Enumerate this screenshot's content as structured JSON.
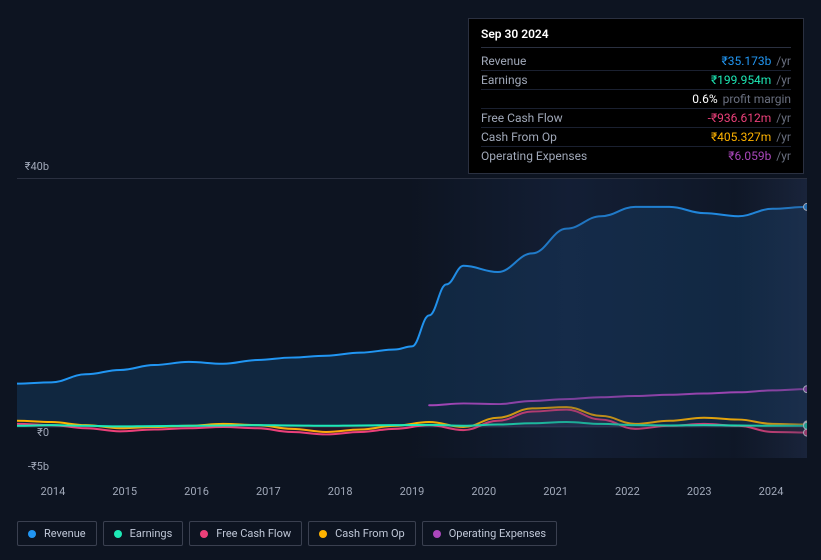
{
  "tooltip": {
    "date": "Sep 30 2024",
    "rows": [
      {
        "label": "Revenue",
        "value": "₹35.173b",
        "suffix": "/yr",
        "color": "#2196f3"
      },
      {
        "label": "Earnings",
        "value": "₹199.954m",
        "suffix": "/yr",
        "color": "#1de9b6"
      },
      {
        "label": "",
        "value": "0.6%",
        "suffix": "profit margin",
        "color": "#ffffff"
      },
      {
        "label": "Free Cash Flow",
        "value": "-₹936.612m",
        "suffix": "/yr",
        "color": "#ec407a"
      },
      {
        "label": "Cash From Op",
        "value": "₹405.327m",
        "suffix": "/yr",
        "color": "#ffb300"
      },
      {
        "label": "Operating Expenses",
        "value": "₹6.059b",
        "suffix": "/yr",
        "color": "#ab47bc"
      }
    ]
  },
  "chart": {
    "type": "area-line",
    "background_color": "#0d1421",
    "grid_color": "#2a3040",
    "xlim": [
      2013.5,
      2025
    ],
    "ylim": [
      -5,
      40
    ],
    "y_ticks": [
      {
        "v": 40,
        "label": "₹40b"
      },
      {
        "v": 0,
        "label": "₹0"
      },
      {
        "v": -5,
        "label": "-₹5b"
      }
    ],
    "x_ticks": [
      2014,
      2015,
      2016,
      2017,
      2018,
      2019,
      2020,
      2021,
      2022,
      2023,
      2024
    ],
    "line_width": 2,
    "highlight_x": 2019.5,
    "series": [
      {
        "name": "Revenue",
        "color": "#2196f3",
        "fill_opacity": 0.15,
        "data": [
          [
            2013.5,
            7
          ],
          [
            2014,
            7.2
          ],
          [
            2014.5,
            8.5
          ],
          [
            2015,
            9.2
          ],
          [
            2015.5,
            10
          ],
          [
            2016,
            10.5
          ],
          [
            2016.5,
            10.2
          ],
          [
            2017,
            10.8
          ],
          [
            2017.5,
            11.2
          ],
          [
            2018,
            11.5
          ],
          [
            2018.5,
            12
          ],
          [
            2019,
            12.5
          ],
          [
            2019.25,
            13
          ],
          [
            2019.5,
            18
          ],
          [
            2019.75,
            23
          ],
          [
            2020,
            26
          ],
          [
            2020.5,
            25
          ],
          [
            2021,
            28
          ],
          [
            2021.5,
            32
          ],
          [
            2022,
            34
          ],
          [
            2022.5,
            35.5
          ],
          [
            2023,
            35.5
          ],
          [
            2023.5,
            34.5
          ],
          [
            2024,
            34
          ],
          [
            2024.5,
            35.2
          ],
          [
            2025,
            35.5
          ]
        ]
      },
      {
        "name": "Operating Expenses",
        "color": "#ab47bc",
        "fill_opacity": 0,
        "data": [
          [
            2019.5,
            3.5
          ],
          [
            2020,
            3.8
          ],
          [
            2020.5,
            3.7
          ],
          [
            2021,
            4.2
          ],
          [
            2021.5,
            4.5
          ],
          [
            2022,
            4.8
          ],
          [
            2022.5,
            5
          ],
          [
            2023,
            5.2
          ],
          [
            2023.5,
            5.4
          ],
          [
            2024,
            5.6
          ],
          [
            2024.5,
            5.9
          ],
          [
            2025,
            6.1
          ]
        ]
      },
      {
        "name": "Cash From Op",
        "color": "#ffb300",
        "fill_opacity": 0,
        "data": [
          [
            2013.5,
            1
          ],
          [
            2014,
            0.8
          ],
          [
            2014.5,
            0.3
          ],
          [
            2015,
            -0.2
          ],
          [
            2015.5,
            0
          ],
          [
            2016,
            0.2
          ],
          [
            2016.5,
            0.5
          ],
          [
            2017,
            0.3
          ],
          [
            2017.5,
            -0.3
          ],
          [
            2018,
            -0.8
          ],
          [
            2018.5,
            -0.4
          ],
          [
            2019,
            0.2
          ],
          [
            2019.5,
            0.8
          ],
          [
            2020,
            0
          ],
          [
            2020.5,
            1.5
          ],
          [
            2021,
            3
          ],
          [
            2021.5,
            3.2
          ],
          [
            2022,
            1.8
          ],
          [
            2022.5,
            0.5
          ],
          [
            2023,
            1
          ],
          [
            2023.5,
            1.5
          ],
          [
            2024,
            1.2
          ],
          [
            2024.5,
            0.5
          ],
          [
            2025,
            0.4
          ]
        ]
      },
      {
        "name": "Free Cash Flow",
        "color": "#ec407a",
        "fill_opacity": 0.1,
        "data": [
          [
            2013.5,
            0.5
          ],
          [
            2014,
            0.3
          ],
          [
            2014.5,
            -0.2
          ],
          [
            2015,
            -0.7
          ],
          [
            2015.5,
            -0.4
          ],
          [
            2016,
            -0.2
          ],
          [
            2016.5,
            0
          ],
          [
            2017,
            -0.2
          ],
          [
            2017.5,
            -0.8
          ],
          [
            2018,
            -1.2
          ],
          [
            2018.5,
            -0.8
          ],
          [
            2019,
            -0.3
          ],
          [
            2019.5,
            0.3
          ],
          [
            2020,
            -0.5
          ],
          [
            2020.5,
            1
          ],
          [
            2021,
            2.5
          ],
          [
            2021.5,
            2.8
          ],
          [
            2022,
            1.2
          ],
          [
            2022.5,
            -0.3
          ],
          [
            2023,
            0.2
          ],
          [
            2023.5,
            0.5
          ],
          [
            2024,
            0.2
          ],
          [
            2024.5,
            -0.8
          ],
          [
            2025,
            -0.9
          ]
        ]
      },
      {
        "name": "Earnings",
        "color": "#1de9b6",
        "fill_opacity": 0,
        "data": [
          [
            2013.5,
            0.2
          ],
          [
            2014,
            0.3
          ],
          [
            2014.5,
            0.2
          ],
          [
            2015,
            0.1
          ],
          [
            2015.5,
            0.15
          ],
          [
            2016,
            0.2
          ],
          [
            2016.5,
            0.25
          ],
          [
            2017,
            0.3
          ],
          [
            2017.5,
            0.25
          ],
          [
            2018,
            0.2
          ],
          [
            2018.5,
            0.25
          ],
          [
            2019,
            0.3
          ],
          [
            2019.5,
            0.35
          ],
          [
            2020,
            0.2
          ],
          [
            2020.5,
            0.4
          ],
          [
            2021,
            0.6
          ],
          [
            2021.5,
            0.8
          ],
          [
            2022,
            0.5
          ],
          [
            2022.5,
            0.3
          ],
          [
            2023,
            0.25
          ],
          [
            2023.5,
            0.3
          ],
          [
            2024,
            0.25
          ],
          [
            2024.5,
            0.2
          ],
          [
            2025,
            0.2
          ]
        ]
      }
    ]
  },
  "legend": [
    {
      "label": "Revenue",
      "color": "#2196f3"
    },
    {
      "label": "Earnings",
      "color": "#1de9b6"
    },
    {
      "label": "Free Cash Flow",
      "color": "#ec407a"
    },
    {
      "label": "Cash From Op",
      "color": "#ffb300"
    },
    {
      "label": "Operating Expenses",
      "color": "#ab47bc"
    }
  ]
}
